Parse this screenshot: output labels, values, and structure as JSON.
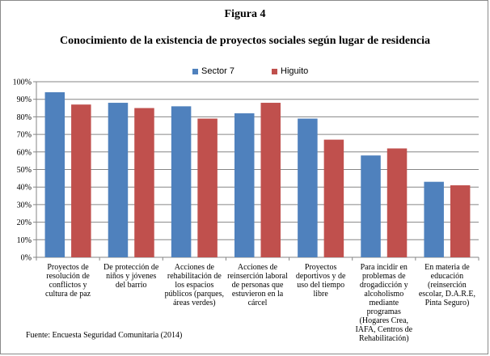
{
  "figure_label": "Figura 4",
  "source": "Fuente: Encuesta Seguridad Comunitaria (2014)",
  "colors": {
    "series_1": "#4f81bd",
    "series_2": "#c0504d",
    "grid": "#868686",
    "axis": "#868686"
  },
  "chart_data": {
    "type": "bar",
    "title": "Conocimiento de la existencia de proyectos sociales  según lugar de residencia",
    "xlabel": "",
    "ylabel": "",
    "ylim": [
      0,
      100
    ],
    "ytick_labels": [
      "0%",
      "10%",
      "20%",
      "30%",
      "40%",
      "50%",
      "60%",
      "70%",
      "80%",
      "90%",
      "100%"
    ],
    "grid": true,
    "legend_position": "top",
    "categories": [
      "Proyectos de resolución de conflictos y cultura de paz",
      "De protección de niños y jóvenes del barrio",
      "Acciones de rehabilitación de los espacios públicos (parques, áreas verdes)",
      "Acciones de reinserción laboral de personas que estuvieron en la cárcel",
      "Proyectos deportivos y de uso del tiempo libre",
      "Para incidir en problemas de drogadicción y alcoholismo mediante programas (Hogares Crea, IAFA, Centros de Rehabilitación)",
      "En materia de educación (reinserción escolar, D.A.R.E, Pinta Seguro)"
    ],
    "series": [
      {
        "name": "Sector 7",
        "values": [
          94,
          88,
          86,
          82,
          79,
          58,
          43
        ]
      },
      {
        "name": "Higuito",
        "values": [
          87,
          85,
          79,
          88,
          67,
          62,
          41
        ]
      }
    ]
  }
}
